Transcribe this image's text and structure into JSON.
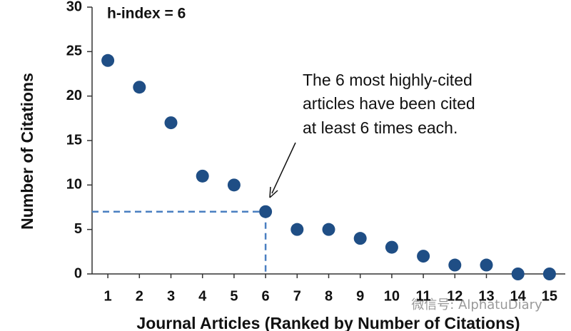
{
  "chart_data": {
    "type": "scatter",
    "title": "h-index = 6",
    "x_label": "Journal Articles (Ranked by Number of Citations)",
    "y_label": "Number of Citations",
    "annotation": [
      "The 6 most highly-cited",
      "articles have been cited",
      "at least 6 times each."
    ],
    "watermark": "微信号: AlphatuDiary",
    "x": [
      1,
      2,
      3,
      4,
      5,
      6,
      7,
      8,
      9,
      10,
      11,
      12,
      13,
      14,
      15
    ],
    "values": [
      24,
      21,
      17,
      11,
      10,
      7,
      5,
      5,
      4,
      3,
      2,
      1,
      1,
      0,
      0
    ],
    "color": "#1f4e85",
    "guide_color": "#4a7fc1",
    "xlim": [
      0.5,
      15.5
    ],
    "xticks": [
      1,
      2,
      3,
      4,
      5,
      6,
      7,
      8,
      9,
      10,
      11,
      12,
      13,
      14,
      15
    ],
    "ylim": [
      0,
      30
    ],
    "yticks": [
      0,
      5,
      10,
      15,
      20,
      25,
      30
    ],
    "grid": false
  }
}
